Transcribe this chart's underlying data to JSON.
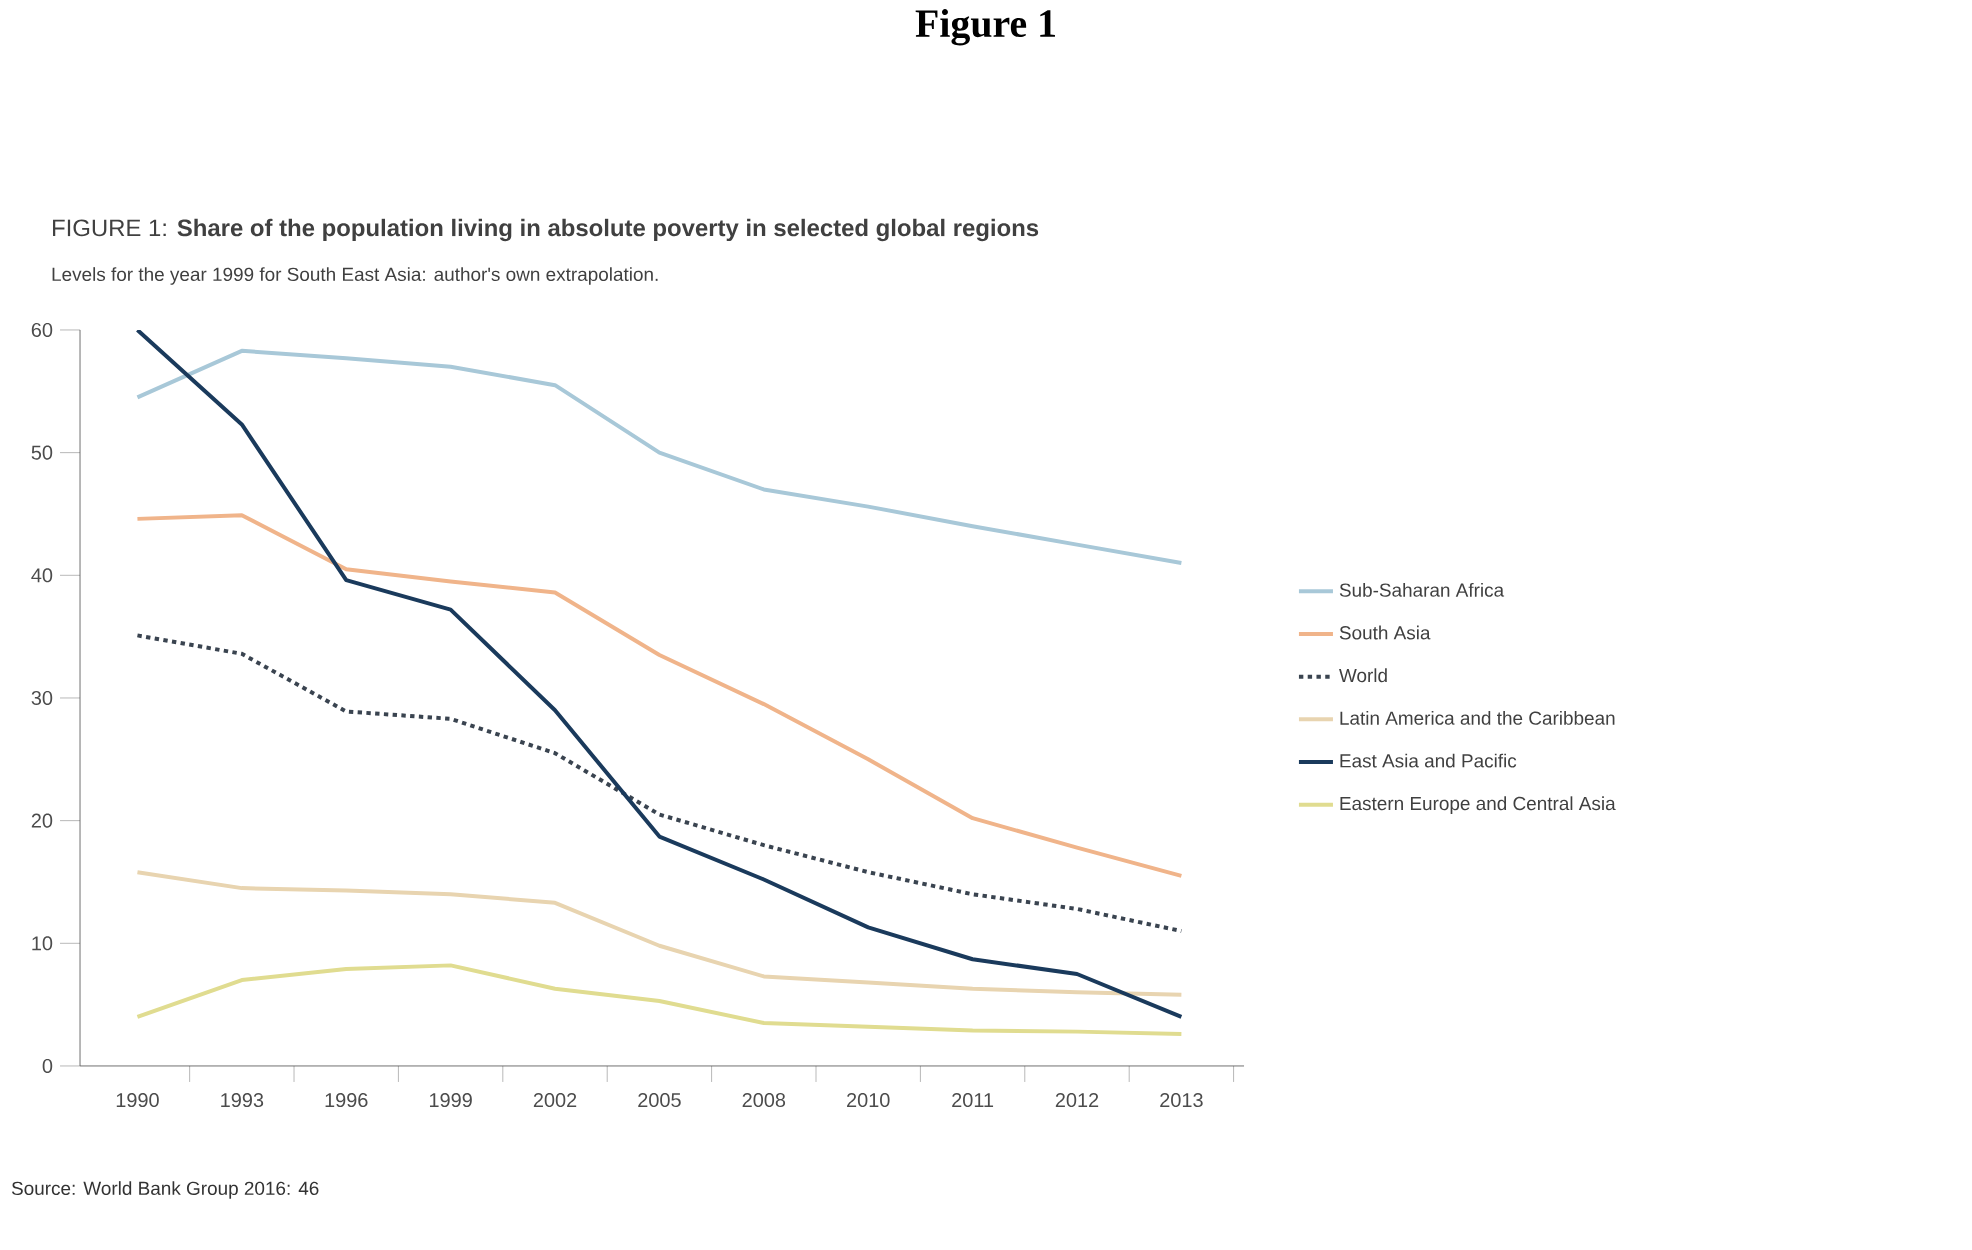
{
  "chart_data": {
    "type": "line",
    "title": "FIGURE 1: **Share of the population living in absolute poverty in selected global regions**",
    "subtitle": "Levels for the year 1999 for South East Asia: author's own extrapolation.",
    "annotations": [
      "Figure 1",
      "Source: World Bank Group 2016: 46"
    ],
    "categories": [
      "1990",
      "1993",
      "1996",
      "1999",
      "2002",
      "2005",
      "2008",
      "2010",
      "2011",
      "2012",
      "2013"
    ],
    "series": [
      {
        "name": "Sub-Saharan Africa",
        "color": "#a8c8d8",
        "values": [
          54.5,
          58.3,
          57.7,
          57.0,
          55.5,
          50,
          47,
          45.6,
          44,
          42.5,
          41
        ]
      },
      {
        "name": "South Asia",
        "color": "#f0b48a",
        "values": [
          44.6,
          44.9,
          40.5,
          39.5,
          38.6,
          33.5,
          29.5,
          25,
          20.2,
          17.8,
          15.5
        ]
      },
      {
        "name": "World",
        "color": "#3a4450",
        "line_style": "dotted",
        "values": [
          35.1,
          33.6,
          28.9,
          28.3,
          25.5,
          20.5,
          18,
          15.8,
          14,
          12.8,
          11
        ]
      },
      {
        "name": "Latin America and the Caribbean",
        "color": "#e8d4b0",
        "values": [
          15.8,
          14.5,
          14.3,
          14.0,
          13.3,
          9.8,
          7.3,
          6.8,
          6.3,
          6.0,
          5.8
        ]
      },
      {
        "name": "East Asia and Pacific",
        "color": "#1a3a5c",
        "values": [
          60,
          52.3,
          39.6,
          37.2,
          29,
          18.7,
          15.2,
          11.3,
          8.7,
          7.5,
          4
        ]
      },
      {
        "name": "Eastern Europe and Central Asia",
        "color": "#e0dc90",
        "values": [
          4,
          7,
          7.9,
          8.2,
          6.3,
          5.3,
          3.5,
          3.2,
          2.9,
          2.8,
          2.6
        ]
      }
    ],
    "ylim": [
      0,
      60
    ],
    "yticks": [
      0,
      10,
      20,
      30,
      40,
      50,
      60
    ],
    "grid": false,
    "legend": "right",
    "line_style": "solid",
    "marker": "none"
  }
}
